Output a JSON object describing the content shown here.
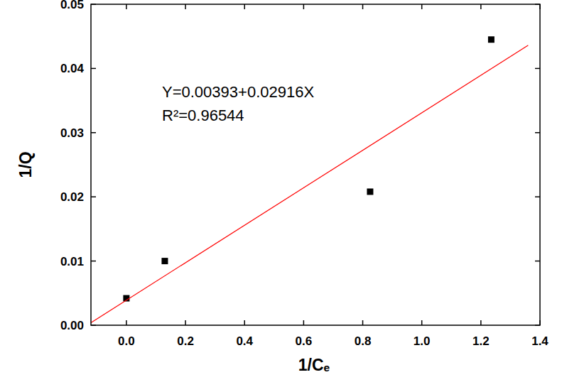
{
  "chart_data": {
    "type": "scatter",
    "x_label": "1/Cₑ",
    "y_label": "1/Q",
    "annotations": [
      "Y=0.00393+0.02916X",
      "R²=0.96544"
    ],
    "series": [
      {
        "type": "scatter",
        "color": "#000000",
        "marker": "square",
        "x": [
          0.0,
          0.13,
          0.825,
          1.235
        ],
        "values": [
          0.0042,
          0.01,
          0.0208,
          0.0445
        ]
      },
      {
        "type": "line",
        "color": "#ff0000",
        "line_style": "solid",
        "x": [
          -0.12,
          1.36
        ],
        "values": [
          0.0004,
          0.0436
        ]
      }
    ],
    "xlim": [
      -0.12,
      1.4
    ],
    "xticks": [
      {
        "value": 0.0,
        "label": "0.0"
      },
      0.2,
      0.4,
      0.6,
      0.8,
      {
        "value": 1.0,
        "label": "1.0"
      },
      1.2,
      1.4
    ],
    "ylim": [
      0,
      0.05
    ],
    "yticks": [
      {
        "value": 0,
        "label": "0.00"
      },
      0.01,
      0.02,
      0.03,
      0.04,
      0.05
    ],
    "grid": false
  }
}
